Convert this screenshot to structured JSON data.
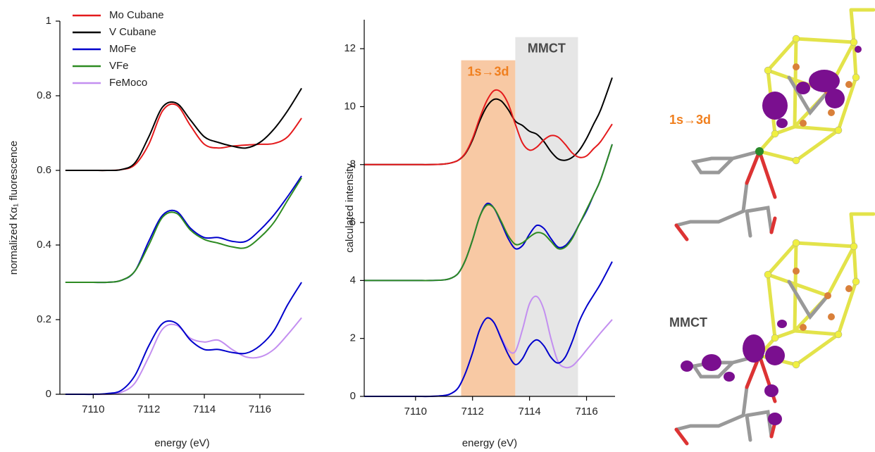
{
  "chart_data": [
    {
      "type": "line",
      "xlabel": "energy (eV)",
      "ylabel": "normalized Kα₁ fluorescence",
      "xlim": [
        7108.8,
        7117.6
      ],
      "xticks": [
        7110,
        7112,
        7114,
        7116
      ],
      "ylim": [
        0,
        1
      ],
      "yticks": [
        0,
        0.2,
        0.4,
        0.6,
        0.8,
        1
      ],
      "legend": "upper left",
      "grid": false,
      "x": [
        7109,
        7109.5,
        7110,
        7110.5,
        7111,
        7111.5,
        7112,
        7112.5,
        7113,
        7113.5,
        7114,
        7114.5,
        7115,
        7115.5,
        7116,
        7116.5,
        7117,
        7117.5
      ],
      "series": [
        {
          "name": "Mo Cubane",
          "color": "#e41a1c",
          "values": [
            0.6,
            0.6,
            0.6,
            0.6,
            0.602,
            0.615,
            0.67,
            0.76,
            0.775,
            0.72,
            0.67,
            0.66,
            0.665,
            0.668,
            0.67,
            0.672,
            0.69,
            0.74
          ]
        },
        {
          "name": "V Cubane",
          "color": "#000000",
          "values": [
            0.6,
            0.6,
            0.6,
            0.6,
            0.602,
            0.62,
            0.69,
            0.77,
            0.78,
            0.735,
            0.69,
            0.675,
            0.665,
            0.66,
            0.675,
            0.71,
            0.76,
            0.82
          ]
        },
        {
          "name": "MoFe",
          "color": "#0000cc",
          "values": [
            0.3,
            0.3,
            0.3,
            0.3,
            0.305,
            0.33,
            0.41,
            0.48,
            0.49,
            0.445,
            0.42,
            0.42,
            0.41,
            0.41,
            0.44,
            0.48,
            0.53,
            0.585
          ]
        },
        {
          "name": "VFe",
          "color": "#2e8b22",
          "values": [
            0.3,
            0.3,
            0.3,
            0.3,
            0.305,
            0.33,
            0.4,
            0.475,
            0.485,
            0.44,
            0.415,
            0.405,
            0.395,
            0.393,
            0.42,
            0.46,
            0.52,
            0.58
          ]
        },
        {
          "name": "FeMoco",
          "color": "#c38ff0",
          "values": [
            0,
            0,
            0,
            0,
            0.005,
            0.03,
            0.1,
            0.175,
            0.185,
            0.15,
            0.14,
            0.145,
            0.12,
            0.1,
            0.1,
            0.12,
            0.16,
            0.205
          ]
        },
        {
          "color": "#0000cc",
          "in_legend": false,
          "values": [
            0,
            0,
            0,
            0.002,
            0.01,
            0.05,
            0.13,
            0.19,
            0.19,
            0.145,
            0.12,
            0.12,
            0.112,
            0.11,
            0.13,
            0.17,
            0.24,
            0.3
          ]
        }
      ]
    },
    {
      "type": "line",
      "xlabel": "energy (eV)",
      "ylabel": "calculated intensity",
      "xlim": [
        7108.2,
        7117
      ],
      "xticks": [
        7110,
        7112,
        7114,
        7116
      ],
      "ylim": [
        0,
        13
      ],
      "yticks": [
        0,
        2,
        4,
        6,
        8,
        10,
        12
      ],
      "grid": false,
      "spans": [
        {
          "label": "1s→3d",
          "xlim": [
            7111.6,
            7113.5
          ],
          "top": 11.6,
          "color": "#f8c9a4",
          "label_color": "#f07f1e"
        },
        {
          "label": "MMCT",
          "xlim": [
            7113.5,
            7115.7
          ],
          "top": 12.4,
          "color": "#e6e6e6",
          "label_color": "#4a4a4a"
        }
      ],
      "x": [
        7108.2,
        7109,
        7110,
        7110.5,
        7111,
        7111.25,
        7111.5,
        7111.75,
        7112,
        7112.25,
        7112.5,
        7112.75,
        7113,
        7113.25,
        7113.5,
        7113.75,
        7114,
        7114.25,
        7114.5,
        7114.75,
        7115,
        7115.25,
        7115.5,
        7115.75,
        7116,
        7116.25,
        7116.5,
        7116.9
      ],
      "series": [
        {
          "color": "#000000",
          "values": [
            8,
            8,
            8,
            8,
            8.02,
            8.06,
            8.15,
            8.38,
            8.85,
            9.5,
            10,
            10.25,
            10.2,
            9.9,
            9.5,
            9.35,
            9.15,
            9.05,
            8.8,
            8.45,
            8.2,
            8.15,
            8.25,
            8.5,
            8.9,
            9.4,
            9.9,
            11
          ]
        },
        {
          "color": "#e41a1c",
          "values": [
            8,
            8,
            8,
            8,
            8.02,
            8.06,
            8.15,
            8.4,
            8.9,
            9.6,
            10.2,
            10.55,
            10.5,
            10.1,
            9.4,
            8.75,
            8.5,
            8.6,
            8.85,
            9,
            8.95,
            8.7,
            8.4,
            8.25,
            8.3,
            8.55,
            8.8,
            9.4
          ]
        },
        {
          "color": "#0000cc",
          "values": [
            4,
            4,
            4,
            4,
            4.02,
            4.08,
            4.25,
            4.7,
            5.4,
            6.2,
            6.65,
            6.5,
            6,
            5.45,
            5.1,
            5.2,
            5.6,
            5.9,
            5.8,
            5.45,
            5.15,
            5.2,
            5.5,
            5.95,
            6.4,
            6.95,
            7.5,
            8.7
          ]
        },
        {
          "color": "#2e8b22",
          "values": [
            4,
            4,
            4,
            4,
            4.02,
            4.08,
            4.25,
            4.7,
            5.4,
            6.2,
            6.6,
            6.5,
            6.05,
            5.55,
            5.25,
            5.3,
            5.5,
            5.65,
            5.6,
            5.35,
            5.1,
            5.15,
            5.45,
            5.95,
            6.45,
            6.95,
            7.5,
            8.7
          ]
        },
        {
          "color": "#c38ff0",
          "values": [
            0,
            0,
            0,
            0,
            0.03,
            0.1,
            0.3,
            0.8,
            1.5,
            2.3,
            2.7,
            2.55,
            2.05,
            1.6,
            1.55,
            2.3,
            3.2,
            3.45,
            3,
            2,
            1.2,
            1,
            1.05,
            1.3,
            1.6,
            1.9,
            2.2,
            2.65
          ]
        },
        {
          "color": "#0000cc",
          "values": [
            0,
            0,
            0,
            0,
            0.03,
            0.1,
            0.3,
            0.8,
            1.5,
            2.3,
            2.7,
            2.55,
            2,
            1.45,
            1.1,
            1.3,
            1.75,
            1.95,
            1.75,
            1.35,
            1.15,
            1.35,
            1.9,
            2.6,
            3.1,
            3.5,
            3.9,
            4.65
          ]
        }
      ]
    }
  ],
  "structures": {
    "labels": [
      "1s→3d",
      "MMCT"
    ]
  }
}
